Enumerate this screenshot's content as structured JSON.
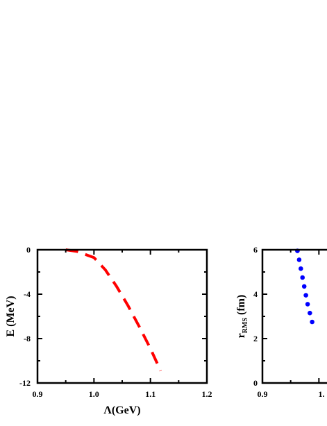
{
  "chart_data": [
    {
      "type": "line",
      "title": "",
      "xlabel": "Λ(GeV)",
      "ylabel": "E (MeV)",
      "xlim": [
        0.9,
        1.2
      ],
      "ylim": [
        -12,
        0
      ],
      "x_major_ticks": [
        "0.9",
        "1.0",
        "1.1",
        "1.2"
      ],
      "y_major_ticks": [
        "0",
        "-4",
        "-8",
        "-12"
      ],
      "grid": false,
      "series": [
        {
          "style": "dashed",
          "color": "#ff0000",
          "x": [
            0.95,
            0.97,
            1.0,
            1.02,
            1.04,
            1.06,
            1.08,
            1.1,
            1.118
          ],
          "y": [
            0.0,
            -0.15,
            -0.7,
            -1.8,
            -3.3,
            -5.0,
            -6.9,
            -8.9,
            -10.9
          ]
        }
      ]
    },
    {
      "type": "scatter",
      "title": "",
      "xlabel": "",
      "ylabel": "r",
      "ylabel_subscript": "RMS",
      "ylabel_unit": " (fm)",
      "xlim": [
        0.9,
        1.2
      ],
      "ylim": [
        0,
        6
      ],
      "x_major_ticks": [
        "0.9",
        "1."
      ],
      "y_major_ticks": [
        "6",
        "4",
        "2",
        "0"
      ],
      "grid": false,
      "series": [
        {
          "style": "dotted",
          "color": "#0000ff",
          "x": [
            0.962,
            0.965,
            0.968,
            0.971,
            0.974,
            0.977,
            0.98,
            0.984,
            0.988
          ],
          "y": [
            5.95,
            5.55,
            5.15,
            4.75,
            4.35,
            3.95,
            3.55,
            3.15,
            2.75
          ]
        }
      ]
    }
  ]
}
